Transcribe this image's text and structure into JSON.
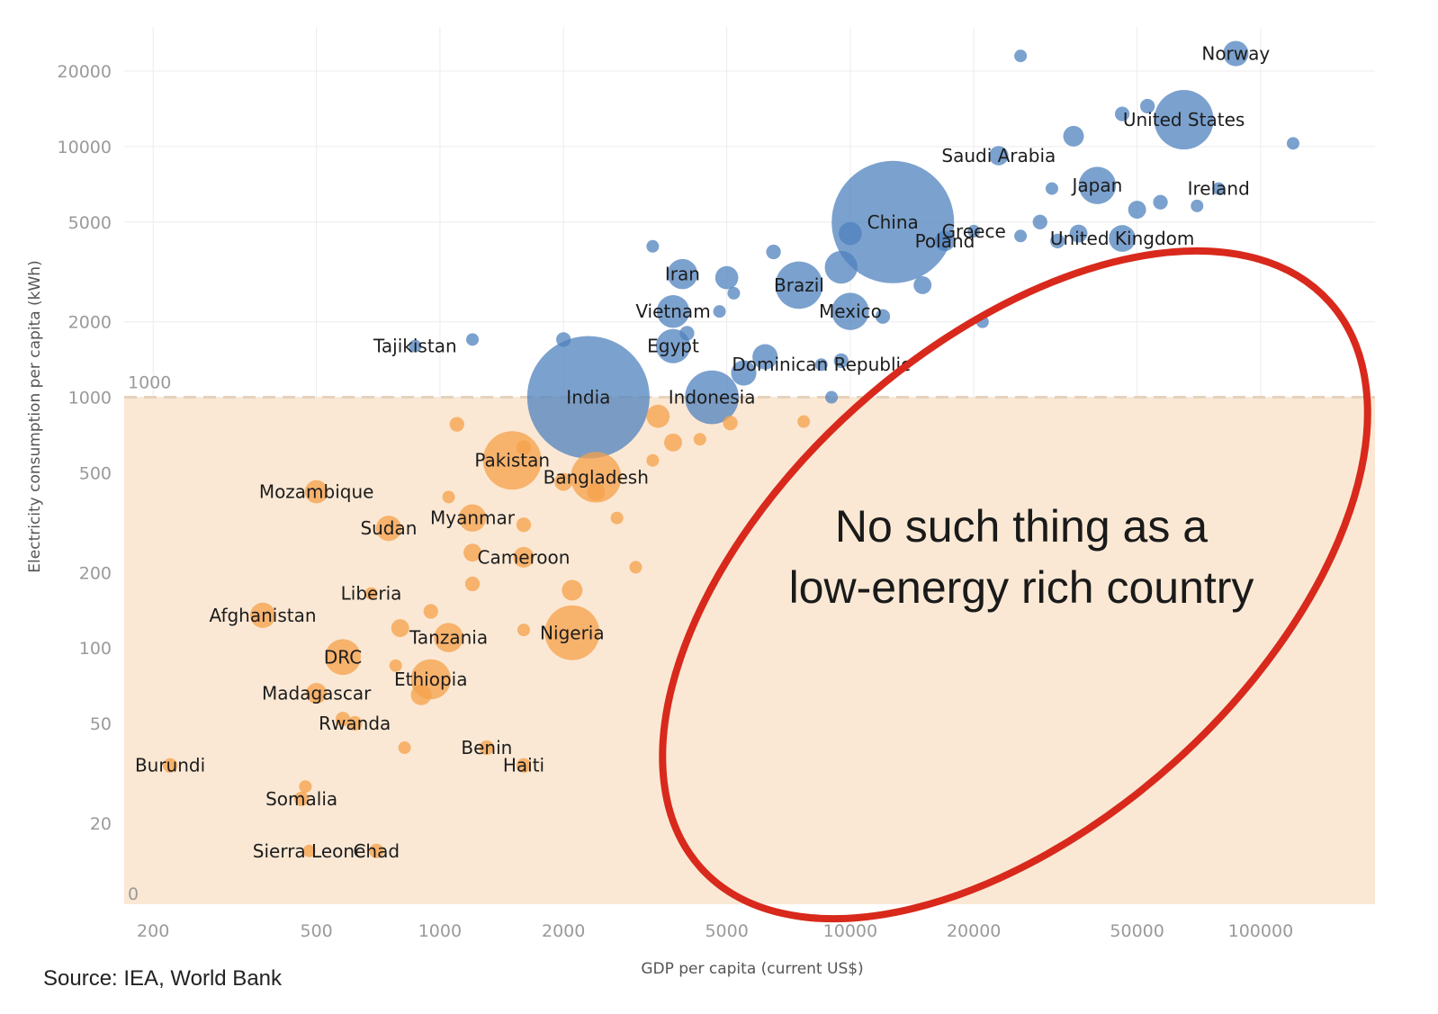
{
  "chart_data": {
    "type": "scatter",
    "title": "",
    "xlabel": "GDP per capita (current US$)",
    "ylabel": "Electricity consumption per capita (kWh)",
    "x_scale": "log",
    "y_scale": "log",
    "xlim": [
      170,
      190000
    ],
    "ylim": [
      9.5,
      30000
    ],
    "x_ticks": [
      {
        "value": 200,
        "label": "200"
      },
      {
        "value": 500,
        "label": "500"
      },
      {
        "value": 1000,
        "label": "1000"
      },
      {
        "value": 2000,
        "label": "2000"
      },
      {
        "value": 5000,
        "label": "5000"
      },
      {
        "value": 10000,
        "label": "10000"
      },
      {
        "value": 20000,
        "label": "20000"
      },
      {
        "value": 50000,
        "label": "50000"
      },
      {
        "value": 100000,
        "label": "100000"
      }
    ],
    "y_ticks": [
      {
        "value": 20,
        "label": "20"
      },
      {
        "value": 50,
        "label": "50"
      },
      {
        "value": 100,
        "label": "100"
      },
      {
        "value": 200,
        "label": "200"
      },
      {
        "value": 500,
        "label": "500"
      },
      {
        "value": 1000,
        "label": "1000"
      },
      {
        "value": 2000,
        "label": "2000"
      },
      {
        "value": 5000,
        "label": "5000"
      },
      {
        "value": 10000,
        "label": "10000"
      },
      {
        "value": 20000,
        "label": "20000"
      }
    ],
    "y_zero_label": "0",
    "grid": true,
    "threshold": {
      "value": 1000,
      "label": "1000"
    },
    "colors": {
      "high": "#4f81bd",
      "low": "#f5a04a",
      "band": "#fae8d4",
      "ellipse": "#d8291c"
    },
    "series": [
      {
        "group": "above-1000",
        "color": "#4f81bd",
        "points": [
          {
            "label": "Norway",
            "x": 87000,
            "y": 23500,
            "size": 0.06
          },
          {
            "label": "United States",
            "x": 65000,
            "y": 12800,
            "size": 0.33
          },
          {
            "label": "Saudi Arabia",
            "x": 23000,
            "y": 9200,
            "size": 0.035
          },
          {
            "label": "Japan",
            "x": 40000,
            "y": 7000,
            "size": 0.13
          },
          {
            "label": "Ireland",
            "x": 79000,
            "y": 6800,
            "size": 0.005
          },
          {
            "label": "China",
            "x": 12700,
            "y": 5000,
            "size": 1.4
          },
          {
            "label": "Greece",
            "x": 20000,
            "y": 4600,
            "size": 0.011
          },
          {
            "label": "Poland",
            "x": 17000,
            "y": 4200,
            "size": 0.038
          },
          {
            "label": "United Kingdom",
            "x": 46000,
            "y": 4300,
            "size": 0.067
          },
          {
            "label": "Iran",
            "x": 3900,
            "y": 3100,
            "size": 0.085
          },
          {
            "label": "Brazil",
            "x": 7500,
            "y": 2800,
            "size": 0.21
          },
          {
            "label": "Mexico",
            "x": 10000,
            "y": 2200,
            "size": 0.13
          },
          {
            "label": "Vietnam",
            "x": 3700,
            "y": 2200,
            "size": 0.1
          },
          {
            "label": "Tajikistan",
            "x": 870,
            "y": 1600,
            "size": 0.01
          },
          {
            "label": "Egypt",
            "x": 3700,
            "y": 1600,
            "size": 0.11
          },
          {
            "label": "Dominican Republic",
            "x": 8500,
            "y": 1350,
            "size": 0.011
          },
          {
            "label": "India",
            "x": 2300,
            "y": 1000,
            "size": 1.4
          },
          {
            "label": "Indonesia",
            "x": 4600,
            "y": 1000,
            "size": 0.27
          },
          {
            "label": "",
            "x": 26000,
            "y": 23000,
            "size": 0.006
          },
          {
            "label": "",
            "x": 120000,
            "y": 10300,
            "size": 0.006
          },
          {
            "label": "",
            "x": 53000,
            "y": 14500,
            "size": 0.02
          },
          {
            "label": "",
            "x": 35000,
            "y": 11000,
            "size": 0.04
          },
          {
            "label": "",
            "x": 46000,
            "y": 13500,
            "size": 0.02
          },
          {
            "label": "",
            "x": 50000,
            "y": 5600,
            "size": 0.03
          },
          {
            "label": "",
            "x": 57000,
            "y": 6000,
            "size": 0.02
          },
          {
            "label": "",
            "x": 70000,
            "y": 5800,
            "size": 0.005
          },
          {
            "label": "",
            "x": 31000,
            "y": 6800,
            "size": 0.01
          },
          {
            "label": "",
            "x": 29000,
            "y": 5000,
            "size": 0.02
          },
          {
            "label": "",
            "x": 36000,
            "y": 4500,
            "size": 0.03
          },
          {
            "label": "",
            "x": 32000,
            "y": 4200,
            "size": 0.02
          },
          {
            "label": "",
            "x": 26000,
            "y": 4400,
            "size": 0.01
          },
          {
            "label": "",
            "x": 15000,
            "y": 2800,
            "size": 0.03
          },
          {
            "label": "",
            "x": 21000,
            "y": 2000,
            "size": 0.005
          },
          {
            "label": "",
            "x": 12000,
            "y": 2100,
            "size": 0.02
          },
          {
            "label": "",
            "x": 9500,
            "y": 3300,
            "size": 0.1
          },
          {
            "label": "",
            "x": 10000,
            "y": 4500,
            "size": 0.05
          },
          {
            "label": "",
            "x": 6500,
            "y": 3800,
            "size": 0.02
          },
          {
            "label": "",
            "x": 5000,
            "y": 3000,
            "size": 0.05
          },
          {
            "label": "",
            "x": 5200,
            "y": 2600,
            "size": 0.01
          },
          {
            "label": "",
            "x": 4800,
            "y": 2200,
            "size": 0.01
          },
          {
            "label": "",
            "x": 3300,
            "y": 4000,
            "size": 0.005
          },
          {
            "label": "",
            "x": 1200,
            "y": 1700,
            "size": 0.006
          },
          {
            "label": "",
            "x": 2000,
            "y": 1700,
            "size": 0.02
          },
          {
            "label": "",
            "x": 6200,
            "y": 1450,
            "size": 0.06
          },
          {
            "label": "",
            "x": 5500,
            "y": 1250,
            "size": 0.06
          },
          {
            "label": "",
            "x": 9000,
            "y": 1000,
            "size": 0.005
          },
          {
            "label": "",
            "x": 9500,
            "y": 1400,
            "size": 0.02
          },
          {
            "label": "",
            "x": 4000,
            "y": 1800,
            "size": 0.02
          }
        ]
      },
      {
        "group": "below-1000",
        "color": "#f5a04a",
        "points": [
          {
            "label": "Pakistan",
            "x": 1500,
            "y": 560,
            "size": 0.32
          },
          {
            "label": "Bangladesh",
            "x": 2400,
            "y": 480,
            "size": 0.24
          },
          {
            "label": "Mozambique",
            "x": 500,
            "y": 420,
            "size": 0.05
          },
          {
            "label": "Myanmar",
            "x": 1200,
            "y": 330,
            "size": 0.07
          },
          {
            "label": "Sudan",
            "x": 750,
            "y": 300,
            "size": 0.06
          },
          {
            "label": "Cameroon",
            "x": 1600,
            "y": 230,
            "size": 0.04
          },
          {
            "label": "Liberia",
            "x": 680,
            "y": 165,
            "size": 0.008
          },
          {
            "label": "Afghanistan",
            "x": 370,
            "y": 135,
            "size": 0.06
          },
          {
            "label": "Nigeria",
            "x": 2100,
            "y": 115,
            "size": 0.28
          },
          {
            "label": "Tanzania",
            "x": 1050,
            "y": 110,
            "size": 0.08
          },
          {
            "label": "DRC",
            "x": 580,
            "y": 92,
            "size": 0.12
          },
          {
            "label": "Ethiopia",
            "x": 950,
            "y": 75,
            "size": 0.15
          },
          {
            "label": "Madagascar",
            "x": 500,
            "y": 66,
            "size": 0.04
          },
          {
            "label": "Rwanda",
            "x": 620,
            "y": 50,
            "size": 0.02
          },
          {
            "label": "Benin",
            "x": 1300,
            "y": 40,
            "size": 0.02
          },
          {
            "label": "Haiti",
            "x": 1600,
            "y": 34,
            "size": 0.02
          },
          {
            "label": "Burundi",
            "x": 220,
            "y": 34,
            "size": 0.02
          },
          {
            "label": "Somalia",
            "x": 460,
            "y": 25,
            "size": 0.02
          },
          {
            "label": "Sierra Leone",
            "x": 480,
            "y": 15.5,
            "size": 0.01
          },
          {
            "label": "Chad",
            "x": 700,
            "y": 15.5,
            "size": 0.02
          },
          {
            "label": "",
            "x": 1100,
            "y": 780,
            "size": 0.02
          },
          {
            "label": "",
            "x": 1600,
            "y": 630,
            "size": 0.02
          },
          {
            "label": "",
            "x": 3400,
            "y": 840,
            "size": 0.05
          },
          {
            "label": "",
            "x": 3700,
            "y": 660,
            "size": 0.03
          },
          {
            "label": "",
            "x": 5100,
            "y": 790,
            "size": 0.02
          },
          {
            "label": "",
            "x": 4300,
            "y": 680,
            "size": 0.005
          },
          {
            "label": "",
            "x": 3300,
            "y": 560,
            "size": 0.005
          },
          {
            "label": "",
            "x": 7700,
            "y": 800,
            "size": 0.005
          },
          {
            "label": "",
            "x": 1050,
            "y": 400,
            "size": 0.005
          },
          {
            "label": "",
            "x": 1600,
            "y": 310,
            "size": 0.02
          },
          {
            "label": "",
            "x": 2700,
            "y": 330,
            "size": 0.005
          },
          {
            "label": "",
            "x": 1200,
            "y": 240,
            "size": 0.03
          },
          {
            "label": "",
            "x": 1200,
            "y": 180,
            "size": 0.02
          },
          {
            "label": "",
            "x": 3000,
            "y": 210,
            "size": 0.005
          },
          {
            "label": "",
            "x": 2100,
            "y": 170,
            "size": 0.04
          },
          {
            "label": "",
            "x": 950,
            "y": 140,
            "size": 0.02
          },
          {
            "label": "",
            "x": 1600,
            "y": 118,
            "size": 0.005
          },
          {
            "label": "",
            "x": 800,
            "y": 120,
            "size": 0.03
          },
          {
            "label": "",
            "x": 780,
            "y": 85,
            "size": 0.005
          },
          {
            "label": "",
            "x": 900,
            "y": 65,
            "size": 0.04
          },
          {
            "label": "",
            "x": 580,
            "y": 52,
            "size": 0.02
          },
          {
            "label": "",
            "x": 820,
            "y": 40,
            "size": 0.005
          },
          {
            "label": "",
            "x": 470,
            "y": 28,
            "size": 0.005
          },
          {
            "label": "",
            "x": 2000,
            "y": 460,
            "size": 0.03
          },
          {
            "label": "",
            "x": 2400,
            "y": 420,
            "size": 0.03
          }
        ]
      }
    ],
    "annotation": {
      "lines": [
        "No such thing as a",
        "low-energy rich country"
      ]
    }
  },
  "source": "Source: IEA, World Bank"
}
